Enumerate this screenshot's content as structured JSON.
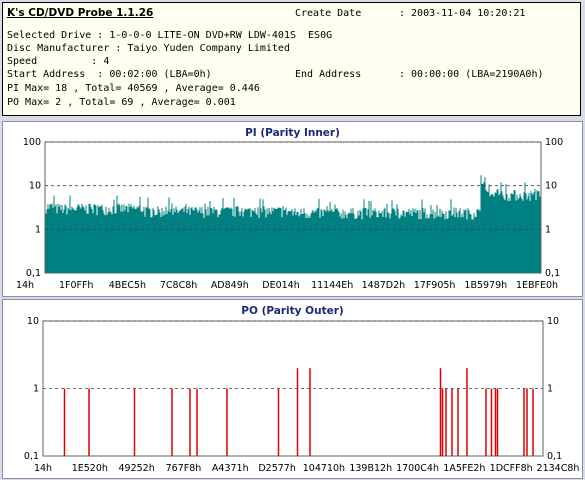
{
  "app_title": "K's CD/DVD Probe 1.1.26",
  "info": {
    "create_date_label": "Create Date",
    "create_date_value": ": 2003-11-04 10:20:21",
    "drive_line": "Selected Drive : 1-0-0-0 LITE-ON DVD+RW LDW-401S  ES0G",
    "manufacturer_line": "Disc Manufacturer : Taiyo Yuden Company Limited",
    "speed_line": "Speed         : 4",
    "start_line": "Start Address  : 00:02:00 (LBA=0h)",
    "end_label": "End Address",
    "end_value": ": 00:00:00 (LBA=2190A0h)",
    "pi_line": "PI Max= 18 , Total= 40569 , Average= 0.446",
    "po_line": "PO Max= 2 , Total= 69 , Average= 0.001"
  },
  "colors": {
    "pi_fill": "#008080",
    "po_line": "#e00000",
    "title": "#1a2a7a"
  },
  "chart_data": [
    {
      "type": "bar",
      "title": "PI (Parity Inner)",
      "yscale": "log",
      "ylim": [
        0.1,
        100
      ],
      "yticks": [
        "0,1",
        "1",
        "10",
        "100"
      ],
      "grid": "dashed horizontal",
      "xticks": [
        "14h",
        "1F0FFh",
        "4BEC5h",
        "7C8C8h",
        "AD849h",
        "DE014h",
        "11144Eh",
        "1487D2h",
        "17F905h",
        "1B5979h",
        "1EBFE0h"
      ],
      "profile": [
        {
          "from": 0.0,
          "to": 0.02,
          "level": 3.3
        },
        {
          "from": 0.02,
          "to": 0.2,
          "level": 3.0
        },
        {
          "from": 0.2,
          "to": 0.5,
          "level": 2.6
        },
        {
          "from": 0.5,
          "to": 0.88,
          "level": 2.4
        },
        {
          "from": 0.88,
          "to": 0.885,
          "level": 8
        },
        {
          "from": 0.885,
          "to": 1.0,
          "level": 6.2
        }
      ],
      "max": 18
    },
    {
      "type": "bar",
      "title": "PO (Parity Outer)",
      "yscale": "log",
      "ylim": [
        0.1,
        10
      ],
      "yticks": [
        "0,1",
        "1",
        "10"
      ],
      "grid": "dashed horizontal",
      "xticks": [
        "14h",
        "1E520h",
        "49252h",
        "767F8h",
        "A4371h",
        "D2577h",
        "104710h",
        "139B12h",
        "1700C4h",
        "1A5FE2h",
        "1DCFF8h",
        "2134C8h"
      ],
      "series": [
        {
          "values": [
            {
              "x": 0.043,
              "y": 1
            },
            {
              "x": 0.092,
              "y": 1
            },
            {
              "x": 0.183,
              "y": 1
            },
            {
              "x": 0.258,
              "y": 1
            },
            {
              "x": 0.294,
              "y": 1
            },
            {
              "x": 0.308,
              "y": 1
            },
            {
              "x": 0.368,
              "y": 1
            },
            {
              "x": 0.471,
              "y": 1
            },
            {
              "x": 0.509,
              "y": 2
            },
            {
              "x": 0.534,
              "y": 2
            },
            {
              "x": 0.795,
              "y": 2
            },
            {
              "x": 0.799,
              "y": 1
            },
            {
              "x": 0.806,
              "y": 1
            },
            {
              "x": 0.818,
              "y": 1
            },
            {
              "x": 0.83,
              "y": 1
            },
            {
              "x": 0.848,
              "y": 2
            },
            {
              "x": 0.886,
              "y": 1
            },
            {
              "x": 0.897,
              "y": 1
            },
            {
              "x": 0.905,
              "y": 1
            },
            {
              "x": 0.909,
              "y": 1
            },
            {
              "x": 0.962,
              "y": 1
            },
            {
              "x": 0.968,
              "y": 1
            },
            {
              "x": 0.98,
              "y": 1
            }
          ]
        }
      ]
    }
  ]
}
